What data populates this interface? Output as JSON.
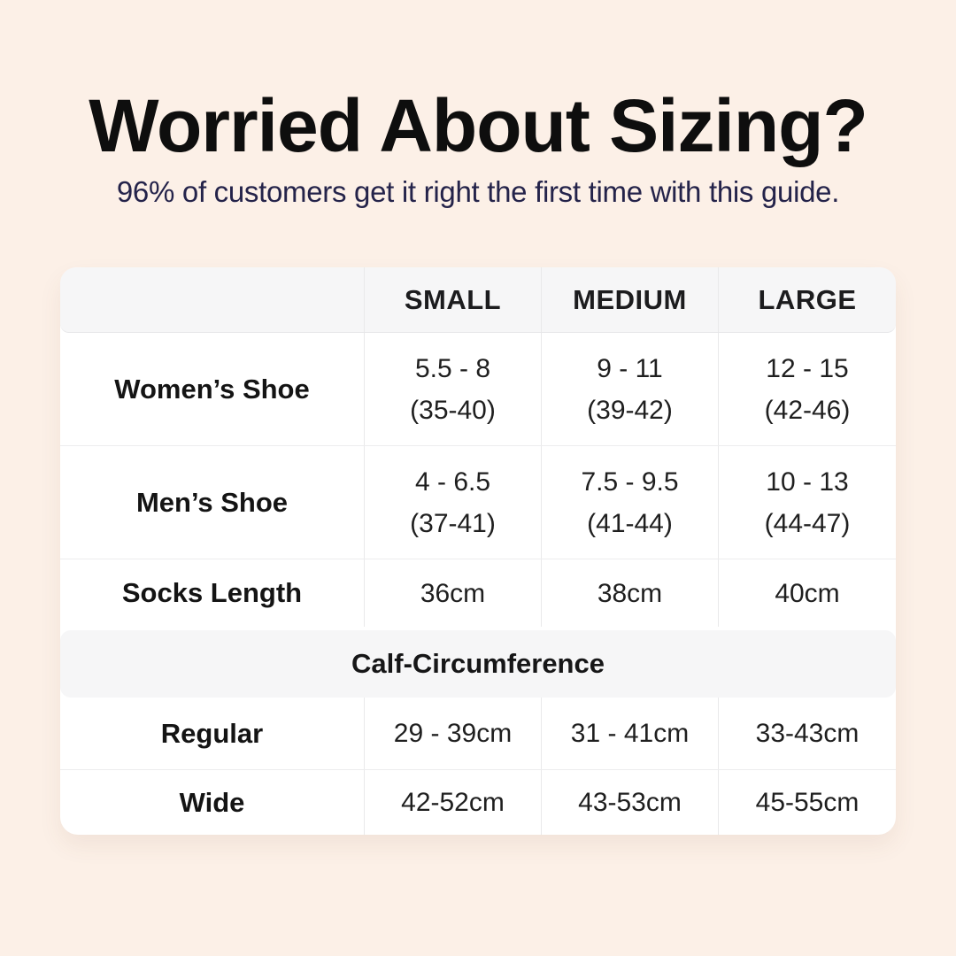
{
  "header": {
    "title": "Worried About Sizing?",
    "subtitle": "96% of customers get it right the first time with this guide."
  },
  "colors": {
    "page_background": "#fcf0e7",
    "card_background": "#ffffff",
    "band_background": "#f6f6f7",
    "title_text": "#0e0e0e",
    "subtitle_text": "#24234a"
  },
  "table": {
    "columns": [
      "SMALL",
      "MEDIUM",
      "LARGE"
    ],
    "shoe_rows": [
      {
        "label": "Women’s Shoe",
        "small": "5.5 - 8",
        "small_eu": "(35-40)",
        "medium": "9 - 11",
        "medium_eu": "(39-42)",
        "large": "12 - 15",
        "large_eu": "(42-46)"
      },
      {
        "label": "Men’s Shoe",
        "small": "4 - 6.5",
        "small_eu": "(37-41)",
        "medium": "7.5 - 9.5",
        "medium_eu": "(41-44)",
        "large": "10 - 13",
        "large_eu": "(44-47)"
      }
    ],
    "socks_row": {
      "label": "Socks Length",
      "small": "36cm",
      "medium": "38cm",
      "large": "40cm"
    },
    "calf_section": {
      "title": "Calf-Circumference"
    },
    "calf_rows": [
      {
        "label": "Regular",
        "small": "29 - 39cm",
        "medium": "31 - 41cm",
        "large": "33-43cm"
      },
      {
        "label": "Wide",
        "small": "42-52cm",
        "medium": "43-53cm",
        "large": "45-55cm"
      }
    ]
  }
}
